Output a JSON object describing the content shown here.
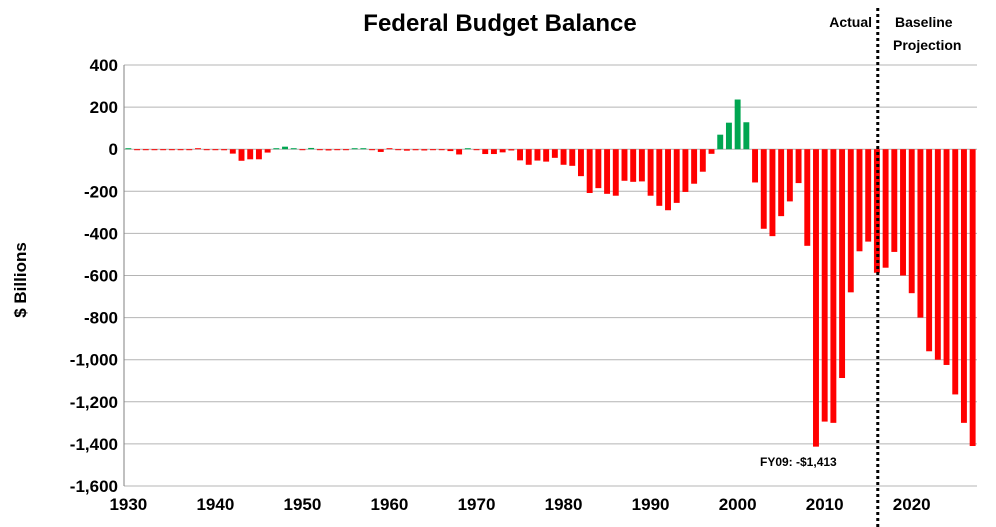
{
  "chart_data": {
    "type": "bar",
    "title": "Federal Budget Balance",
    "ylabel": "$ Billions",
    "xlabel": "",
    "ylim": [
      -1600,
      400
    ],
    "ytick_step": 200,
    "ytick_labels": [
      "400",
      "200",
      "0",
      "-200",
      "-400",
      "-600",
      "-800",
      "-1,000",
      "-1,200",
      "-1,400",
      "-1,600"
    ],
    "xlim": [
      1930,
      2027
    ],
    "xtick_labels": [
      "1930",
      "1940",
      "1950",
      "1960",
      "1970",
      "1980",
      "1990",
      "2000",
      "2010",
      "2020"
    ],
    "grid": true,
    "colors": {
      "deficit": "#ff0000",
      "surplus": "#00a651",
      "grid": "#b4b4b4"
    },
    "divider_year": 2016.6,
    "divider_labels": {
      "left": "Actual",
      "right": [
        "Baseline",
        "Projection"
      ]
    },
    "annotation": {
      "text": "FY09: -$1,413",
      "year": 2009
    },
    "years": [
      1930,
      1931,
      1932,
      1933,
      1934,
      1935,
      1936,
      1937,
      1938,
      1939,
      1940,
      1941,
      1942,
      1943,
      1944,
      1945,
      1946,
      1947,
      1948,
      1949,
      1950,
      1951,
      1952,
      1953,
      1954,
      1955,
      1956,
      1957,
      1958,
      1959,
      1960,
      1961,
      1962,
      1963,
      1964,
      1965,
      1966,
      1967,
      1968,
      1969,
      1970,
      1971,
      1972,
      1973,
      1974,
      1975,
      1976,
      1977,
      1978,
      1979,
      1980,
      1981,
      1982,
      1983,
      1984,
      1985,
      1986,
      1987,
      1988,
      1989,
      1990,
      1991,
      1992,
      1993,
      1994,
      1995,
      1996,
      1997,
      1998,
      1999,
      2000,
      2001,
      2002,
      2003,
      2004,
      2005,
      2006,
      2007,
      2008,
      2009,
      2010,
      2011,
      2012,
      2013,
      2014,
      2015,
      2016,
      2017,
      2018,
      2019,
      2020,
      2021,
      2022,
      2023,
      2024,
      2025,
      2026,
      2027
    ],
    "values": [
      1,
      -0.5,
      -3,
      -3,
      -4,
      -3,
      -4,
      -3,
      0,
      -3,
      -3,
      -5,
      -21,
      -55,
      -48,
      -48,
      -16,
      4,
      12,
      1,
      -3,
      6,
      -2,
      -6,
      -1,
      -3,
      4,
      3,
      -3,
      -13,
      0,
      -3,
      -7,
      -5,
      -6,
      -1,
      -4,
      -9,
      -25,
      3,
      -3,
      -23,
      -23,
      -15,
      -6,
      -53,
      -74,
      -54,
      -59,
      -41,
      -74,
      -79,
      -128,
      -208,
      -185,
      -212,
      -221,
      -150,
      -155,
      -153,
      -221,
      -269,
      -290,
      -255,
      -203,
      -164,
      -107,
      -22,
      69,
      126,
      236,
      128,
      -158,
      -378,
      -413,
      -318,
      -248,
      -161,
      -459,
      -1413,
      -1294,
      -1300,
      -1087,
      -680,
      -485,
      -439,
      -587,
      -563,
      -488,
      -600,
      -684,
      -800,
      -960,
      -1000,
      -1025,
      -1165,
      -1300,
      -1410
    ]
  }
}
